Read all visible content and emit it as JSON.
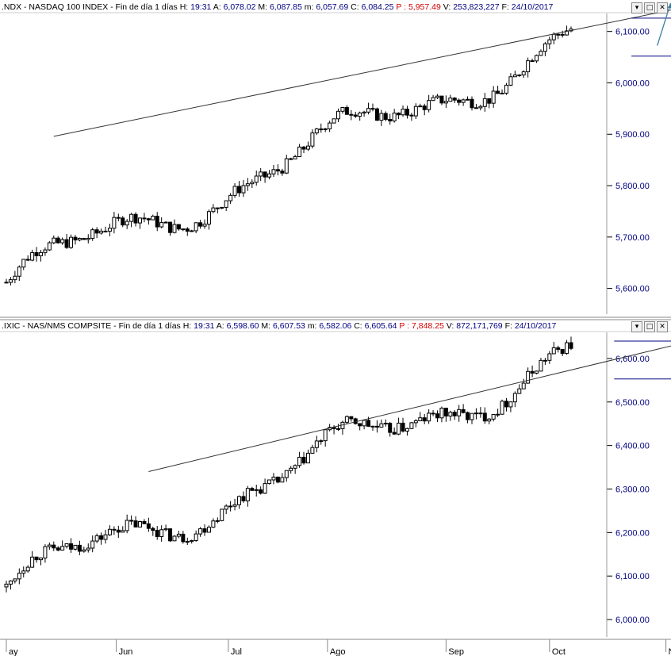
{
  "colors": {
    "background": "#ffffff",
    "axis_label": "#000080",
    "price_red": "#d00000",
    "trendline": "#333333",
    "channel": "#000080",
    "projection": "#3a7fa6"
  },
  "window_buttons": [
    "▾",
    "□",
    "✕"
  ],
  "chart_data": [
    {
      "type": "candlestick",
      "header": {
        "symbol": ".NDX - NASDAQ 100 INDEX - Fin de día 1 días",
        "h_label": "H:",
        "h_value": "19:31",
        "a_label": "A:",
        "a_value": "6,078.02",
        "m_label": "M:",
        "m_value": "6,087.85",
        "min_label": "m:",
        "min_value": "6,057.69",
        "c_label": "C:",
        "c_value": "6,084.25",
        "p_label": "P :",
        "p_value": "5,957.49",
        "v_label": "V:",
        "v_value": "253,823,227",
        "f_label": "F:",
        "f_value": "24/10/2017"
      },
      "ylim": [
        5550,
        6135
      ],
      "yticks": [
        "6,100.00",
        "6,000.00",
        "5,900.00",
        "5,800.00",
        "5,700.00",
        "5,600.00"
      ],
      "ytick_values": [
        6100,
        6000,
        5900,
        5800,
        5700,
        5600
      ],
      "first_close": 5612,
      "trendlines": [
        {
          "x": [
            11,
            166
          ],
          "y": [
            5896,
            6162
          ],
          "color": "trendline"
        },
        {
          "x": [
            145,
            153
          ],
          "y": [
            6093,
            6053
          ],
          "color": "channel"
        }
      ],
      "channel": {
        "x": [
          145,
          153
        ],
        "upper": 6126,
        "lower": 6052
      }
    },
    {
      "type": "candlestick",
      "header": {
        "symbol": ".IXIC - NAS/NMS COMPSITE - Fin de día 1 días",
        "h_label": "H:",
        "h_value": "19:31",
        "a_label": "A:",
        "a_value": "6,598.60",
        "m_label": "M:",
        "m_value": "6,607.53",
        "min_label": "m:",
        "min_value": "6,582.06",
        "c_label": "C:",
        "c_value": "6,605.64",
        "p_label": "P :",
        "p_value": "7,848.25",
        "v_label": "V:",
        "v_value": "872,171,769",
        "f_label": "F:",
        "f_value": "24/10/2017"
      },
      "ylim": [
        5960,
        6660
      ],
      "yticks": [
        "6,600.00",
        "6,500.00",
        "6,400.00",
        "6,300.00",
        "6,200.00",
        "6,100.00",
        "6,000.00"
      ],
      "ytick_values": [
        6600,
        6500,
        6400,
        6300,
        6200,
        6100,
        6000
      ],
      "first_close": 6075,
      "trendlines": [
        {
          "x": [
            33,
            179
          ],
          "y": [
            6340,
            6688
          ],
          "color": "trendline"
        }
      ],
      "channel": {
        "x": [
          141,
          166
        ],
        "upper": 6640,
        "lower": 6553
      }
    }
  ],
  "x_axis": {
    "labels": [
      "ay",
      "Jun",
      "Jul",
      "Ago",
      "Sep",
      "Oct",
      "Nov"
    ],
    "label_positions": [
      0,
      25.5,
      51.5,
      74.5,
      102,
      126,
      153
    ]
  }
}
